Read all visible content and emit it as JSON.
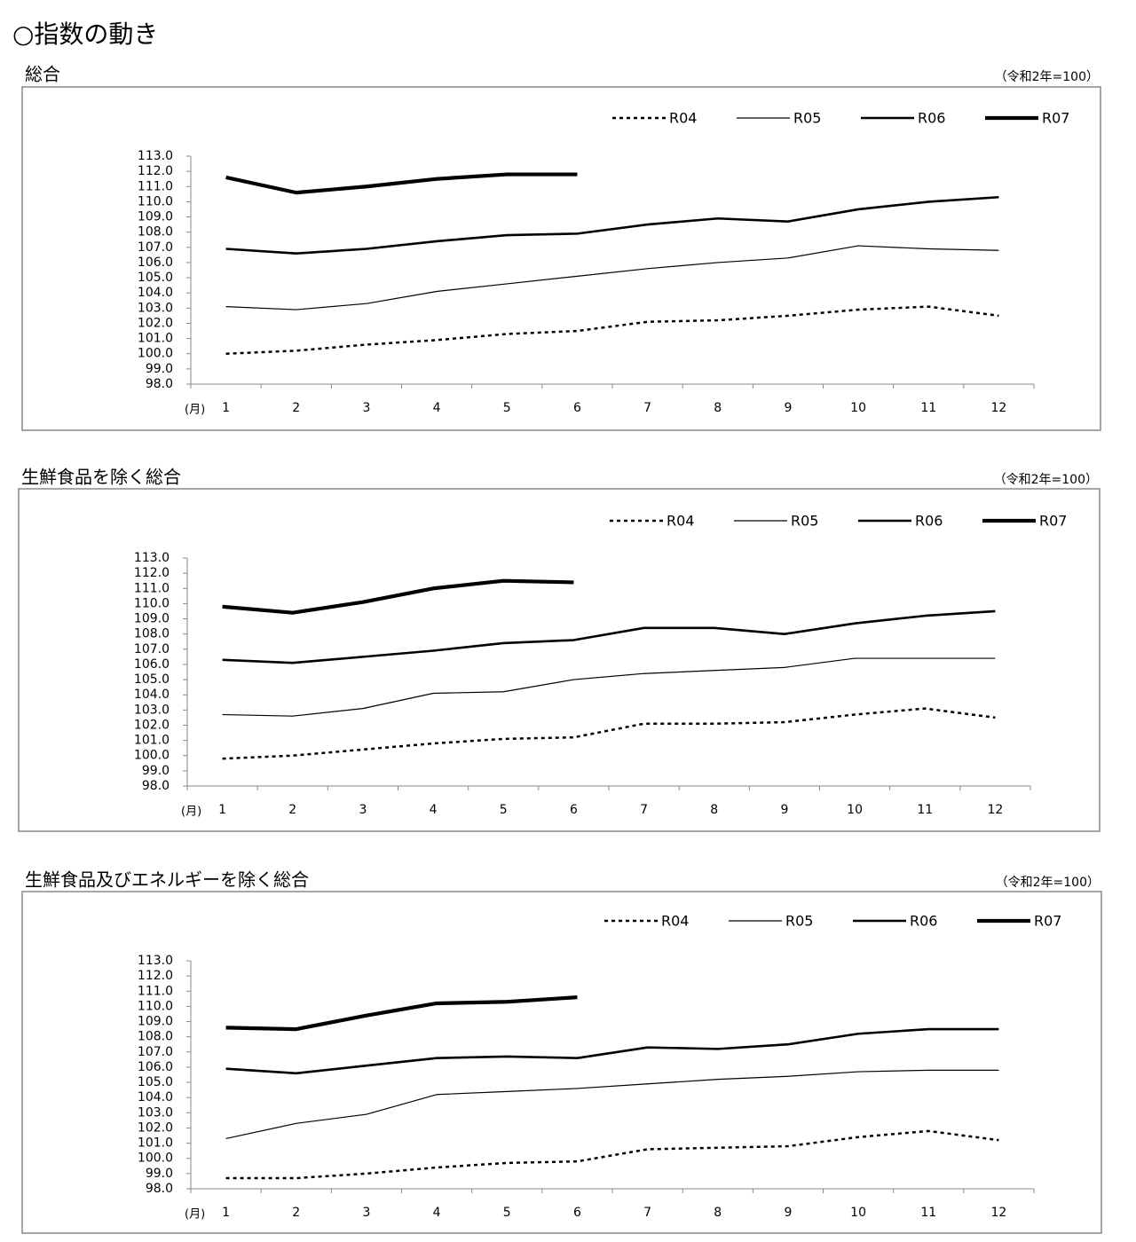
{
  "title": "○指数の動き",
  "chart_data": [
    {
      "type": "line",
      "title": "総合",
      "annotation": "（令和2年=100）",
      "x_label": "(月)",
      "categories": [
        "1",
        "2",
        "3",
        "4",
        "5",
        "6",
        "7",
        "8",
        "9",
        "10",
        "11",
        "12"
      ],
      "ylim": [
        98,
        113
      ],
      "yticks": [
        {
          "value": 98,
          "label": "98.0"
        },
        {
          "value": 99,
          "label": "99.0"
        },
        {
          "value": 100,
          "label": "100.0"
        },
        {
          "value": 101,
          "label": "101.0"
        },
        {
          "value": 102,
          "label": "102.0"
        },
        {
          "value": 103,
          "label": "103.0"
        },
        {
          "value": 104,
          "label": "104.0"
        },
        {
          "value": 105,
          "label": "105.0"
        },
        {
          "value": 106,
          "label": "106.0"
        },
        {
          "value": 107,
          "label": "107.0"
        },
        {
          "value": 108,
          "label": "108.0"
        },
        {
          "value": 109,
          "label": "109.0"
        },
        {
          "value": 110,
          "label": "110.0"
        },
        {
          "value": 111,
          "label": "111.0"
        },
        {
          "value": 112,
          "label": "112.0"
        },
        {
          "value": 113,
          "label": "113.0"
        }
      ],
      "series": [
        {
          "name": "R04",
          "color": "#000000",
          "values": [
            100.0,
            100.2,
            100.6,
            100.9,
            101.3,
            101.5,
            102.1,
            102.2,
            102.5,
            102.9,
            103.1,
            102.5
          ]
        },
        {
          "name": "R05",
          "color": "#000000",
          "values": [
            103.1,
            102.9,
            103.3,
            104.1,
            104.6,
            105.1,
            105.6,
            106.0,
            106.3,
            107.1,
            106.9,
            106.8
          ]
        },
        {
          "name": "R06",
          "color": "#000000",
          "values": [
            106.9,
            106.6,
            106.9,
            107.4,
            107.8,
            107.9,
            108.5,
            108.9,
            108.7,
            109.5,
            110.0,
            110.3
          ]
        },
        {
          "name": "R07",
          "color": "#000000",
          "values": [
            111.6,
            110.6,
            111.0,
            111.5,
            111.8,
            111.8,
            null,
            null,
            null,
            null,
            null,
            null
          ]
        }
      ]
    },
    {
      "type": "line",
      "title": "生鮮食品を除く総合",
      "annotation": "（令和2年=100）",
      "x_label": "(月)",
      "categories": [
        "1",
        "2",
        "3",
        "4",
        "5",
        "6",
        "7",
        "8",
        "9",
        "10",
        "11",
        "12"
      ],
      "ylim": [
        98,
        113
      ],
      "yticks": [
        {
          "value": 98,
          "label": "98.0"
        },
        {
          "value": 99,
          "label": "99.0"
        },
        {
          "value": 100,
          "label": "100.0"
        },
        {
          "value": 101,
          "label": "101.0"
        },
        {
          "value": 102,
          "label": "102.0"
        },
        {
          "value": 103,
          "label": "103.0"
        },
        {
          "value": 104,
          "label": "104.0"
        },
        {
          "value": 105,
          "label": "105.0"
        },
        {
          "value": 106,
          "label": "106.0"
        },
        {
          "value": 107,
          "label": "107.0"
        },
        {
          "value": 108,
          "label": "108.0"
        },
        {
          "value": 109,
          "label": "109.0"
        },
        {
          "value": 110,
          "label": "110.0"
        },
        {
          "value": 111,
          "label": "111.0"
        },
        {
          "value": 112,
          "label": "112.0"
        },
        {
          "value": 113,
          "label": "113.0"
        }
      ],
      "series": [
        {
          "name": "R04",
          "color": "#000000",
          "values": [
            99.8,
            100.0,
            100.4,
            100.8,
            101.1,
            101.2,
            102.1,
            102.1,
            102.2,
            102.7,
            103.1,
            102.5
          ]
        },
        {
          "name": "R05",
          "color": "#000000",
          "values": [
            102.7,
            102.6,
            103.1,
            104.1,
            104.2,
            105.0,
            105.4,
            105.6,
            105.8,
            106.4,
            106.4,
            106.4
          ]
        },
        {
          "name": "R06",
          "color": "#000000",
          "values": [
            106.3,
            106.1,
            106.5,
            106.9,
            107.4,
            107.6,
            108.4,
            108.4,
            108.0,
            108.7,
            109.2,
            109.5
          ]
        },
        {
          "name": "R07",
          "color": "#000000",
          "values": [
            109.8,
            109.4,
            110.1,
            111.0,
            111.5,
            111.4,
            null,
            null,
            null,
            null,
            null,
            null
          ]
        }
      ]
    },
    {
      "type": "line",
      "title": "生鮮食品及びエネルギーを除く総合",
      "annotation": "（令和2年=100）",
      "x_label": "(月)",
      "categories": [
        "1",
        "2",
        "3",
        "4",
        "5",
        "6",
        "7",
        "8",
        "9",
        "10",
        "11",
        "12"
      ],
      "ylim": [
        98,
        113
      ],
      "yticks": [
        {
          "value": 98,
          "label": "98.0"
        },
        {
          "value": 99,
          "label": "99.0"
        },
        {
          "value": 100,
          "label": "100.0"
        },
        {
          "value": 101,
          "label": "101.0"
        },
        {
          "value": 102,
          "label": "102.0"
        },
        {
          "value": 103,
          "label": "103.0"
        },
        {
          "value": 104,
          "label": "104.0"
        },
        {
          "value": 105,
          "label": "105.0"
        },
        {
          "value": 106,
          "label": "106.0"
        },
        {
          "value": 107,
          "label": "107.0"
        },
        {
          "value": 108,
          "label": "108.0"
        },
        {
          "value": 109,
          "label": "109.0"
        },
        {
          "value": 110,
          "label": "110.0"
        },
        {
          "value": 111,
          "label": "111.0"
        },
        {
          "value": 112,
          "label": "112.0"
        },
        {
          "value": 113,
          "label": "113.0"
        }
      ],
      "series": [
        {
          "name": "R04",
          "color": "#000000",
          "values": [
            98.7,
            98.7,
            99.0,
            99.4,
            99.7,
            99.8,
            100.6,
            100.7,
            100.8,
            101.4,
            101.8,
            101.2
          ]
        },
        {
          "name": "R05",
          "color": "#000000",
          "values": [
            101.3,
            102.3,
            102.9,
            104.2,
            104.4,
            104.6,
            104.9,
            105.2,
            105.4,
            105.7,
            105.8,
            105.8
          ]
        },
        {
          "name": "R06",
          "color": "#000000",
          "values": [
            105.9,
            105.6,
            106.1,
            106.6,
            106.7,
            106.6,
            107.3,
            107.2,
            107.5,
            108.2,
            108.5,
            108.5
          ]
        },
        {
          "name": "R07",
          "color": "#000000",
          "values": [
            108.6,
            108.5,
            109.4,
            110.2,
            110.3,
            110.6,
            null,
            null,
            null,
            null,
            null,
            null
          ]
        }
      ]
    }
  ]
}
